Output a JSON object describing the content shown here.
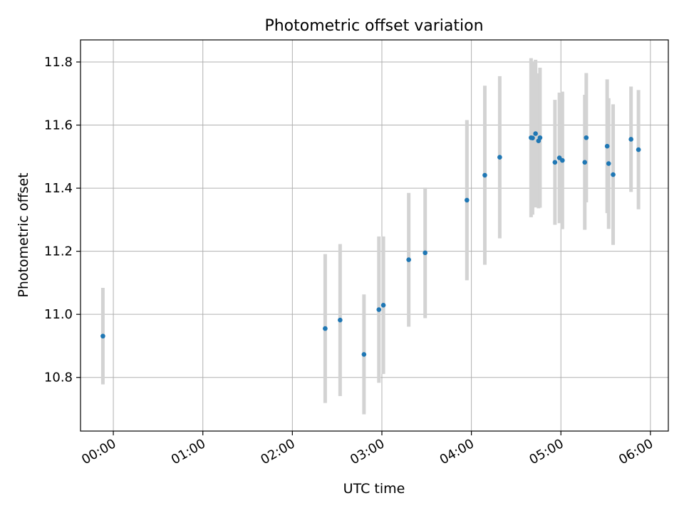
{
  "chart_data": {
    "type": "scatter",
    "title": "Photometric offset variation",
    "xlabel": "UTC time",
    "ylabel": "Photometric offset",
    "x_unit": "UTC hours (HH:MM)",
    "xlim": [
      "-00:22",
      "06:12"
    ],
    "ylim": [
      10.63,
      11.87
    ],
    "x_ticks": [
      "00:00",
      "01:00",
      "02:00",
      "03:00",
      "04:00",
      "05:00",
      "06:00"
    ],
    "y_ticks": [
      "10.8",
      "11.0",
      "11.2",
      "11.4",
      "11.6",
      "11.8"
    ],
    "grid": true,
    "legend": "none",
    "errorbars": "symmetric vertical",
    "points": [
      {
        "x": "23:53",
        "y": 10.931,
        "err": 0.153
      },
      {
        "x": "02:22",
        "y": 10.955,
        "err": 0.236
      },
      {
        "x": "02:32",
        "y": 10.982,
        "err": 0.241
      },
      {
        "x": "02:48",
        "y": 10.873,
        "err": 0.19
      },
      {
        "x": "02:58",
        "y": 11.015,
        "err": 0.232
      },
      {
        "x": "03:01",
        "y": 11.029,
        "err": 0.218
      },
      {
        "x": "03:18",
        "y": 11.173,
        "err": 0.212
      },
      {
        "x": "03:29",
        "y": 11.195,
        "err": 0.207
      },
      {
        "x": "03:57",
        "y": 11.362,
        "err": 0.254
      },
      {
        "x": "04:09",
        "y": 11.441,
        "err": 0.284
      },
      {
        "x": "04:19",
        "y": 11.498,
        "err": 0.257
      },
      {
        "x": "04:40",
        "y": 11.56,
        "err": 0.252
      },
      {
        "x": "04:41",
        "y": 11.559,
        "err": 0.243
      },
      {
        "x": "04:43",
        "y": 11.573,
        "err": 0.234
      },
      {
        "x": "04:45",
        "y": 11.55,
        "err": 0.214
      },
      {
        "x": "04:46",
        "y": 11.56,
        "err": 0.222
      },
      {
        "x": "04:56",
        "y": 11.482,
        "err": 0.198
      },
      {
        "x": "04:59",
        "y": 11.496,
        "err": 0.207
      },
      {
        "x": "05:01",
        "y": 11.488,
        "err": 0.218
      },
      {
        "x": "05:16",
        "y": 11.482,
        "err": 0.214
      },
      {
        "x": "05:17",
        "y": 11.56,
        "err": 0.205
      },
      {
        "x": "05:31",
        "y": 11.533,
        "err": 0.212
      },
      {
        "x": "05:32",
        "y": 11.478,
        "err": 0.207
      },
      {
        "x": "05:35",
        "y": 11.443,
        "err": 0.223
      },
      {
        "x": "05:47",
        "y": 11.555,
        "err": 0.167
      },
      {
        "x": "05:52",
        "y": 11.522,
        "err": 0.189
      }
    ],
    "colors": {
      "marker": "#1f77b4",
      "errorbar": "#d3d3d3",
      "grid": "#b0b0b0",
      "axes": "#000000"
    }
  }
}
